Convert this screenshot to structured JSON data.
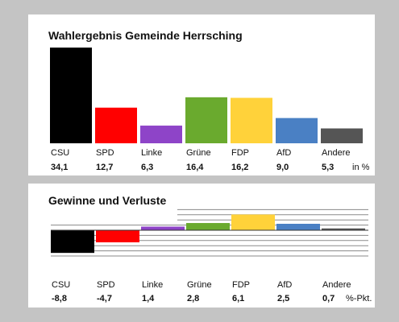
{
  "chart_data": [
    {
      "type": "bar",
      "title": "Wahlergebnis Gemeinde Herrsching",
      "categories": [
        "CSU",
        "SPD",
        "Linke",
        "Grüne",
        "FDP",
        "AfD",
        "Andere"
      ],
      "values": [
        34.1,
        12.7,
        6.3,
        16.4,
        16.2,
        9.0,
        5.3
      ],
      "value_labels": [
        "34,1",
        "12,7",
        "6,3",
        "16,4",
        "16,2",
        "9,0",
        "5,3"
      ],
      "unit": "in %",
      "colors": [
        "#000000",
        "#ff0000",
        "#8e44c8",
        "#6aaa2e",
        "#ffd23a",
        "#4a80c4",
        "#555555"
      ],
      "ylim": [
        0,
        35
      ]
    },
    {
      "type": "bar",
      "title": "Gewinne und Verluste",
      "categories": [
        "CSU",
        "SPD",
        "Linke",
        "Grüne",
        "FDP",
        "AfD",
        "Andere"
      ],
      "values": [
        -8.8,
        -4.7,
        1.4,
        2.8,
        6.1,
        2.5,
        0.7
      ],
      "value_labels": [
        "-8,8",
        "-4,7",
        "1,4",
        "2,8",
        "6,1",
        "2,5",
        "0,7"
      ],
      "unit": "%-Pkt.",
      "colors": [
        "#000000",
        "#ff0000",
        "#8e44c8",
        "#6aaa2e",
        "#ffd23a",
        "#4a80c4",
        "#555555"
      ],
      "ylim": [
        -10,
        8
      ],
      "grid": true
    }
  ]
}
